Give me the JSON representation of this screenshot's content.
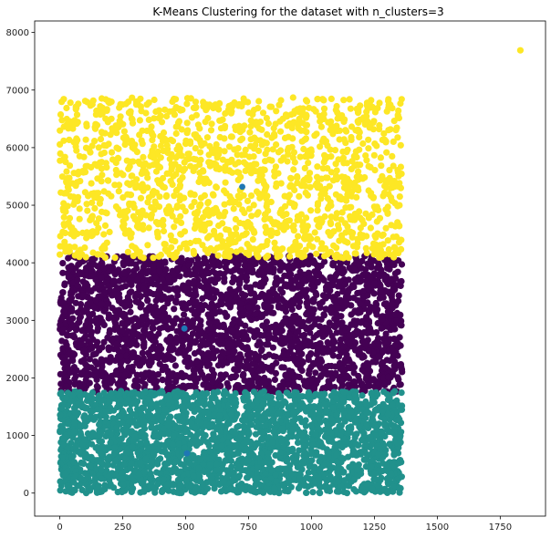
{
  "chart_data": {
    "type": "scatter",
    "title": "K-Means Clustering for the dataset with n_clusters=3",
    "xlabel": "",
    "ylabel": "",
    "xlim": [
      -100,
      1930
    ],
    "ylim": [
      -400,
      8200
    ],
    "xticks": [
      0,
      250,
      500,
      750,
      1000,
      1250,
      1500,
      1750
    ],
    "yticks": [
      0,
      1000,
      2000,
      3000,
      4000,
      5000,
      6000,
      7000,
      8000
    ],
    "grid": false,
    "legend": "none",
    "colors": {
      "cluster_0": "#440154",
      "cluster_1": "#21918c",
      "cluster_2": "#fde725",
      "centroid": "#1f77b4"
    },
    "clusters": [
      {
        "label": 0,
        "x_range": [
          0,
          1360
        ],
        "y_range": [
          1750,
          4120
        ],
        "point_density": "dense"
      },
      {
        "label": 1,
        "x_range": [
          0,
          1360
        ],
        "y_range": [
          0,
          1770
        ],
        "point_density": "dense"
      },
      {
        "label": 2,
        "x_range": [
          0,
          1360
        ],
        "y_range": [
          4080,
          6870
        ],
        "point_density": "moderate"
      }
    ],
    "outliers": [
      {
        "x": 1830,
        "y": 7690,
        "cluster": 2
      }
    ],
    "centroids": [
      {
        "x": 725,
        "y": 5320
      },
      {
        "x": 495,
        "y": 2860
      },
      {
        "x": 505,
        "y": 690
      }
    ]
  }
}
